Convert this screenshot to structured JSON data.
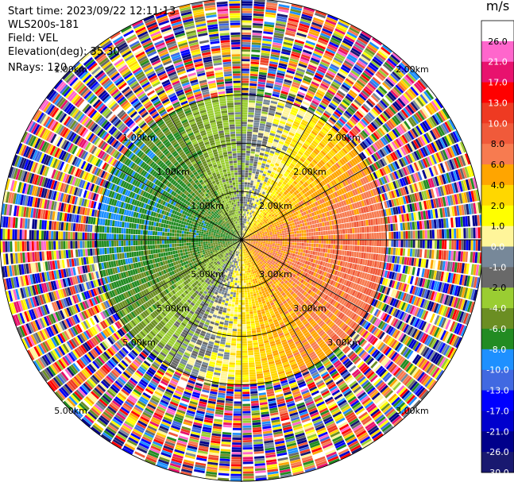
{
  "info": {
    "start_time": "Start time: 2023/09/22 12:11:13",
    "instrument": "WLS200s-181",
    "field": "Field: VEL",
    "elevation": "Elevation(deg): 35.30",
    "nrays": "NRays: 120"
  },
  "colorbar": {
    "title": "m/s",
    "ticks": [
      "26.0",
      "21.0",
      "17.0",
      "13.0",
      "10.0",
      "8.0",
      "6.0",
      "4.0",
      "2.0",
      "1.0",
      "0.0",
      "-1.0",
      "-2.0",
      "-4.0",
      "-6.0",
      "-8.0",
      "-10.0",
      "-13.0",
      "-17.0",
      "-21.0",
      "-26.0",
      "-30.0"
    ],
    "colors": [
      "#ffffff",
      "#ff66cc",
      "#e8126e",
      "#ff0000",
      "#ee3a22",
      "#f05a3a",
      "#f77b50",
      "#ffa500",
      "#ffd700",
      "#ffff00",
      "#fff59a",
      "#778899",
      "#696969",
      "#9acd32",
      "#6b8e23",
      "#228b22",
      "#1e90ff",
      "#4169e1",
      "#0000ff",
      "#0000cd",
      "#00008b",
      "#191970"
    ]
  },
  "chart_data": {
    "type": "ppi",
    "field": "VEL",
    "units": "m/s",
    "nrays": 120,
    "elevation_deg": 35.3,
    "range_rings_km": [
      1.0,
      2.0,
      3.0,
      5.0
    ],
    "range_labels": [
      "1.00km",
      "2.00km",
      "3.00km",
      "5.00km",
      "1.00km",
      "2.00km",
      "3.00km",
      "5.00km",
      "1.00km",
      "2.00km",
      "3.00km",
      "5.00km",
      "1.00km",
      "2.00km",
      "3.00km",
      "5.00km"
    ],
    "azimuth_lines_deg": [
      0,
      30,
      60,
      90,
      120,
      150,
      180,
      210,
      240,
      270,
      300,
      330
    ],
    "max_range_km": 5.0,
    "clean_range_km": 3.0,
    "velocity_structure": {
      "positive_lobe_center_az_deg": 105,
      "negative_lobe_center_az_deg": 285,
      "inner_peak_abs_ms": 6,
      "outer_peak_abs_ms": 8
    },
    "colorbar_boundaries": [
      30,
      26,
      21,
      17,
      13,
      10,
      8,
      6,
      4,
      2,
      1,
      0,
      -1,
      -2,
      -4,
      -6,
      -8,
      -10,
      -13,
      -17,
      -21,
      -26,
      -30
    ]
  }
}
